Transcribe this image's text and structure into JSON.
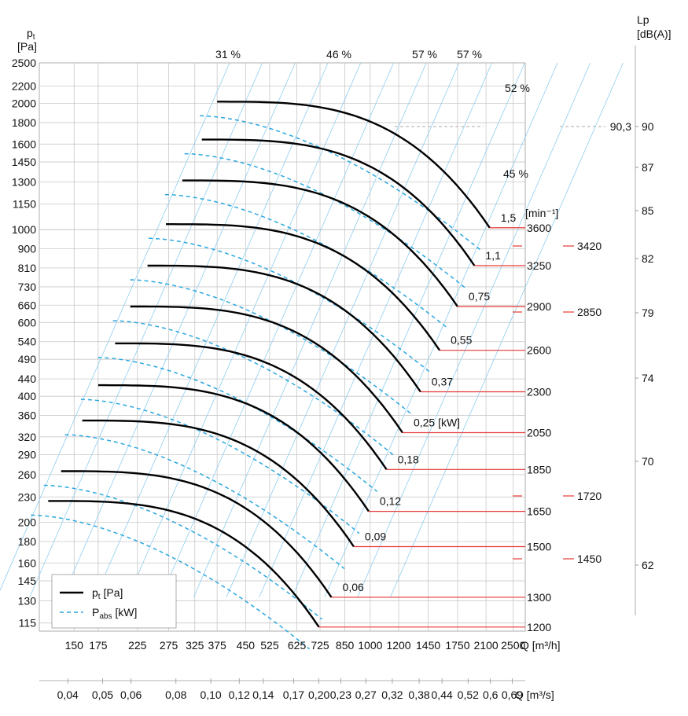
{
  "chart_data": {
    "type": "line",
    "title": "",
    "ylabel": {
      "symbol": "p",
      "sub": "t",
      "unit": "[Pa]"
    },
    "y_ticks": [
      "2500",
      "2200",
      "2000",
      "1800",
      "1600",
      "1450",
      "1300",
      "1150",
      "1000",
      "900",
      "810",
      "730",
      "660",
      "600",
      "540",
      "490",
      "440",
      "400",
      "360",
      "320",
      "290",
      "260",
      "230",
      "200",
      "180",
      "160",
      "145",
      "130",
      "115"
    ],
    "x_ticks": [
      "150",
      "175",
      "225",
      "275",
      "325",
      "375",
      "450",
      "525",
      "625",
      "725",
      "850",
      "1000",
      "1200",
      "1450",
      "1750",
      "2100",
      "2500"
    ],
    "x_ticks_secondary": [
      "0,04",
      "0,05",
      "0,06",
      "0,08",
      "0,10",
      "0,12",
      "0,14",
      "0,17",
      "0,20",
      "0,23",
      "0,27",
      "0,32",
      "0,38",
      "0,44",
      "0,52",
      "0,6",
      "0,69"
    ],
    "xlabel": "Q [m³/h]",
    "xlabel_secondary": "Q [m³/s]",
    "speed_unit": "[min⁻¹]",
    "lp_axis": {
      "label": "Lp",
      "unit": "[dB(A)]",
      "ticks": [
        "90",
        "87",
        "85",
        "82",
        "79",
        "74",
        "70",
        "62"
      ],
      "ref_label": "90,3"
    },
    "efficiency_labels": [
      "31 %",
      "46 %",
      "57 %",
      "57 %",
      "52 %",
      "45 %"
    ],
    "speeds": [
      {
        "rpm": "3600",
        "pmax": 2020,
        "qmax": 2150,
        "qmin": 375,
        "power": "1,5"
      },
      {
        "rpm": "3250",
        "pmax": 1640,
        "qmax": 1950,
        "qmin": 340,
        "power": "1,1"
      },
      {
        "rpm": "2900",
        "pmax": 1310,
        "qmax": 1750,
        "qmin": 300,
        "power": "0,75"
      },
      {
        "rpm": "2600",
        "pmax": 1030,
        "qmax": 1560,
        "qmin": 270,
        "power": "0,55"
      },
      {
        "rpm": "2300",
        "pmax": 820,
        "qmax": 1380,
        "qmin": 240,
        "power": "0,37"
      },
      {
        "rpm": "2050",
        "pmax": 655,
        "qmax": 1230,
        "qmin": 215,
        "power": "0,25 [kW]"
      },
      {
        "rpm": "1850",
        "pmax": 535,
        "qmax": 1110,
        "qmin": 195,
        "power": "0,18"
      },
      {
        "rpm": "1650",
        "pmax": 425,
        "qmax": 990,
        "qmin": 175,
        "power": "0,12"
      },
      {
        "rpm": "1500",
        "pmax": 350,
        "qmax": 900,
        "qmin": 158,
        "power": "0,09"
      },
      {
        "rpm": "1300",
        "pmax": 265,
        "qmax": 780,
        "qmin": 138,
        "power": "0,06"
      },
      {
        "rpm": "1200",
        "pmax": 225,
        "qmax": 720,
        "qmin": 127,
        "power": ""
      }
    ],
    "extra_speeds": [
      "3420",
      "2850",
      "1720",
      "1450"
    ],
    "legend": [
      {
        "symbol": "p",
        "sub": "t",
        "unit": " [Pa]",
        "style": "solid"
      },
      {
        "symbol": "P",
        "sub": "abs",
        "unit": " [kW]",
        "style": "dashed"
      }
    ]
  },
  "colors": {
    "curve": "#000000",
    "power": "#2aa7de",
    "efficiency": "#8fcdf0",
    "speed_line": "#e53935",
    "grid": "#c8c8c8"
  }
}
